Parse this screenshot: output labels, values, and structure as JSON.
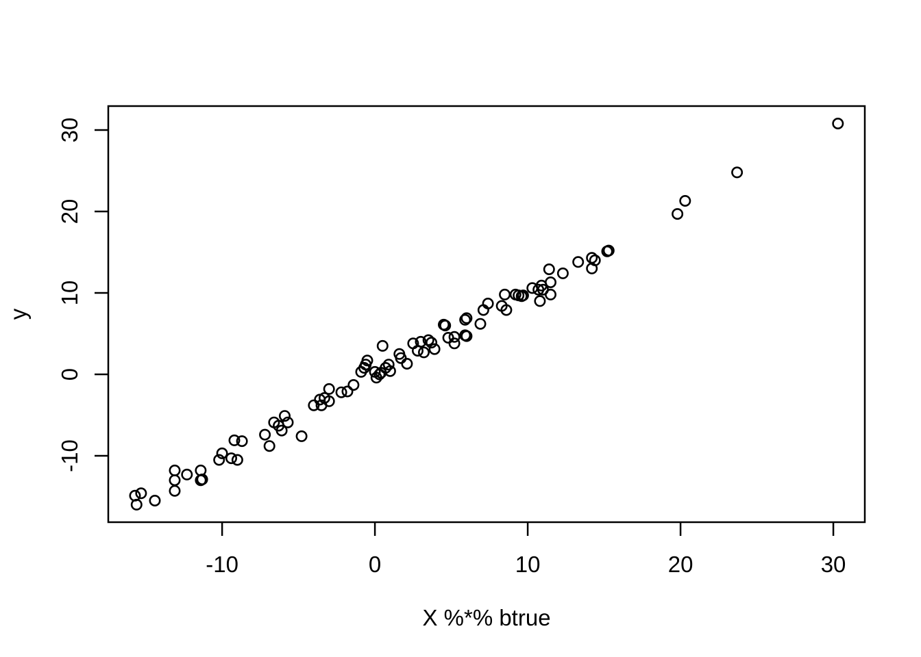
{
  "chart_data": {
    "type": "scatter",
    "title": "",
    "xlabel": "X %*% btrue",
    "ylabel": "y",
    "x_ticks": [
      -10,
      0,
      10,
      20,
      30
    ],
    "y_ticks": [
      -10,
      0,
      10,
      20,
      30
    ],
    "xlim": [
      -17.45,
      32.06
    ],
    "ylim": [
      -18.15,
      32.94
    ],
    "grid": false,
    "legend": "none",
    "background_color": "#ffffff",
    "axis_color": "#000000",
    "marker": {
      "shape": "open-circle",
      "color": "#000000",
      "radius_px": 7.2,
      "stroke_px": 2.6
    },
    "points": [
      [
        -15.6,
        -16.0
      ],
      [
        -15.7,
        -14.9
      ],
      [
        -15.3,
        -14.6
      ],
      [
        -14.4,
        -15.5
      ],
      [
        -13.1,
        -11.8
      ],
      [
        -13.1,
        -13.0
      ],
      [
        -13.1,
        -14.3
      ],
      [
        -12.3,
        -12.3
      ],
      [
        -11.4,
        -11.8
      ],
      [
        -11.4,
        -13.0
      ],
      [
        -11.3,
        -12.9
      ],
      [
        -10.2,
        -10.5
      ],
      [
        -10.0,
        -9.7
      ],
      [
        -9.4,
        -10.3
      ],
      [
        -9.0,
        -10.5
      ],
      [
        -9.2,
        -8.1
      ],
      [
        -8.7,
        -8.2
      ],
      [
        -7.2,
        -7.4
      ],
      [
        -6.9,
        -8.8
      ],
      [
        -6.6,
        -5.9
      ],
      [
        -6.3,
        -6.3
      ],
      [
        -6.1,
        -6.9
      ],
      [
        -5.9,
        -5.1
      ],
      [
        -5.7,
        -5.9
      ],
      [
        -4.8,
        -7.6
      ],
      [
        -4.0,
        -3.8
      ],
      [
        -3.5,
        -3.8
      ],
      [
        -3.6,
        -3.1
      ],
      [
        -3.3,
        -2.9
      ],
      [
        -3.0,
        -3.3
      ],
      [
        -3.0,
        -1.8
      ],
      [
        -2.2,
        -2.2
      ],
      [
        -1.8,
        -2.1
      ],
      [
        -1.4,
        -1.3
      ],
      [
        -0.9,
        0.3
      ],
      [
        -0.7,
        0.8
      ],
      [
        -0.6,
        1.2
      ],
      [
        -0.5,
        1.7
      ],
      [
        0.0,
        0.3
      ],
      [
        0.1,
        -0.4
      ],
      [
        0.3,
        0.0
      ],
      [
        0.4,
        0.2
      ],
      [
        0.5,
        3.5
      ],
      [
        0.7,
        0.8
      ],
      [
        0.9,
        1.2
      ],
      [
        1.0,
        0.4
      ],
      [
        1.6,
        2.5
      ],
      [
        1.7,
        2.0
      ],
      [
        2.1,
        1.3
      ],
      [
        2.5,
        3.8
      ],
      [
        2.8,
        2.9
      ],
      [
        3.0,
        4.0
      ],
      [
        3.2,
        2.7
      ],
      [
        3.5,
        4.2
      ],
      [
        3.7,
        3.9
      ],
      [
        3.9,
        3.1
      ],
      [
        4.5,
        6.1
      ],
      [
        4.6,
        6.0
      ],
      [
        4.8,
        4.5
      ],
      [
        5.2,
        4.6
      ],
      [
        5.2,
        3.8
      ],
      [
        5.9,
        6.7
      ],
      [
        6.0,
        6.9
      ],
      [
        5.9,
        4.8
      ],
      [
        6.0,
        4.7
      ],
      [
        6.9,
        6.2
      ],
      [
        7.1,
        7.9
      ],
      [
        7.4,
        8.7
      ],
      [
        8.3,
        8.4
      ],
      [
        8.5,
        9.8
      ],
      [
        8.6,
        7.9
      ],
      [
        9.2,
        9.8
      ],
      [
        9.4,
        9.7
      ],
      [
        9.6,
        9.6
      ],
      [
        9.7,
        9.7
      ],
      [
        10.3,
        10.6
      ],
      [
        10.7,
        10.4
      ],
      [
        10.9,
        10.9
      ],
      [
        10.8,
        9.0
      ],
      [
        11.0,
        10.4
      ],
      [
        11.4,
        12.9
      ],
      [
        11.5,
        11.3
      ],
      [
        11.5,
        9.8
      ],
      [
        12.3,
        12.4
      ],
      [
        13.3,
        13.8
      ],
      [
        14.2,
        14.3
      ],
      [
        14.4,
        14.0
      ],
      [
        14.2,
        13.0
      ],
      [
        15.2,
        15.1
      ],
      [
        15.3,
        15.2
      ],
      [
        19.8,
        19.7
      ],
      [
        20.3,
        21.3
      ],
      [
        23.7,
        24.8
      ],
      [
        30.3,
        30.8
      ]
    ]
  }
}
